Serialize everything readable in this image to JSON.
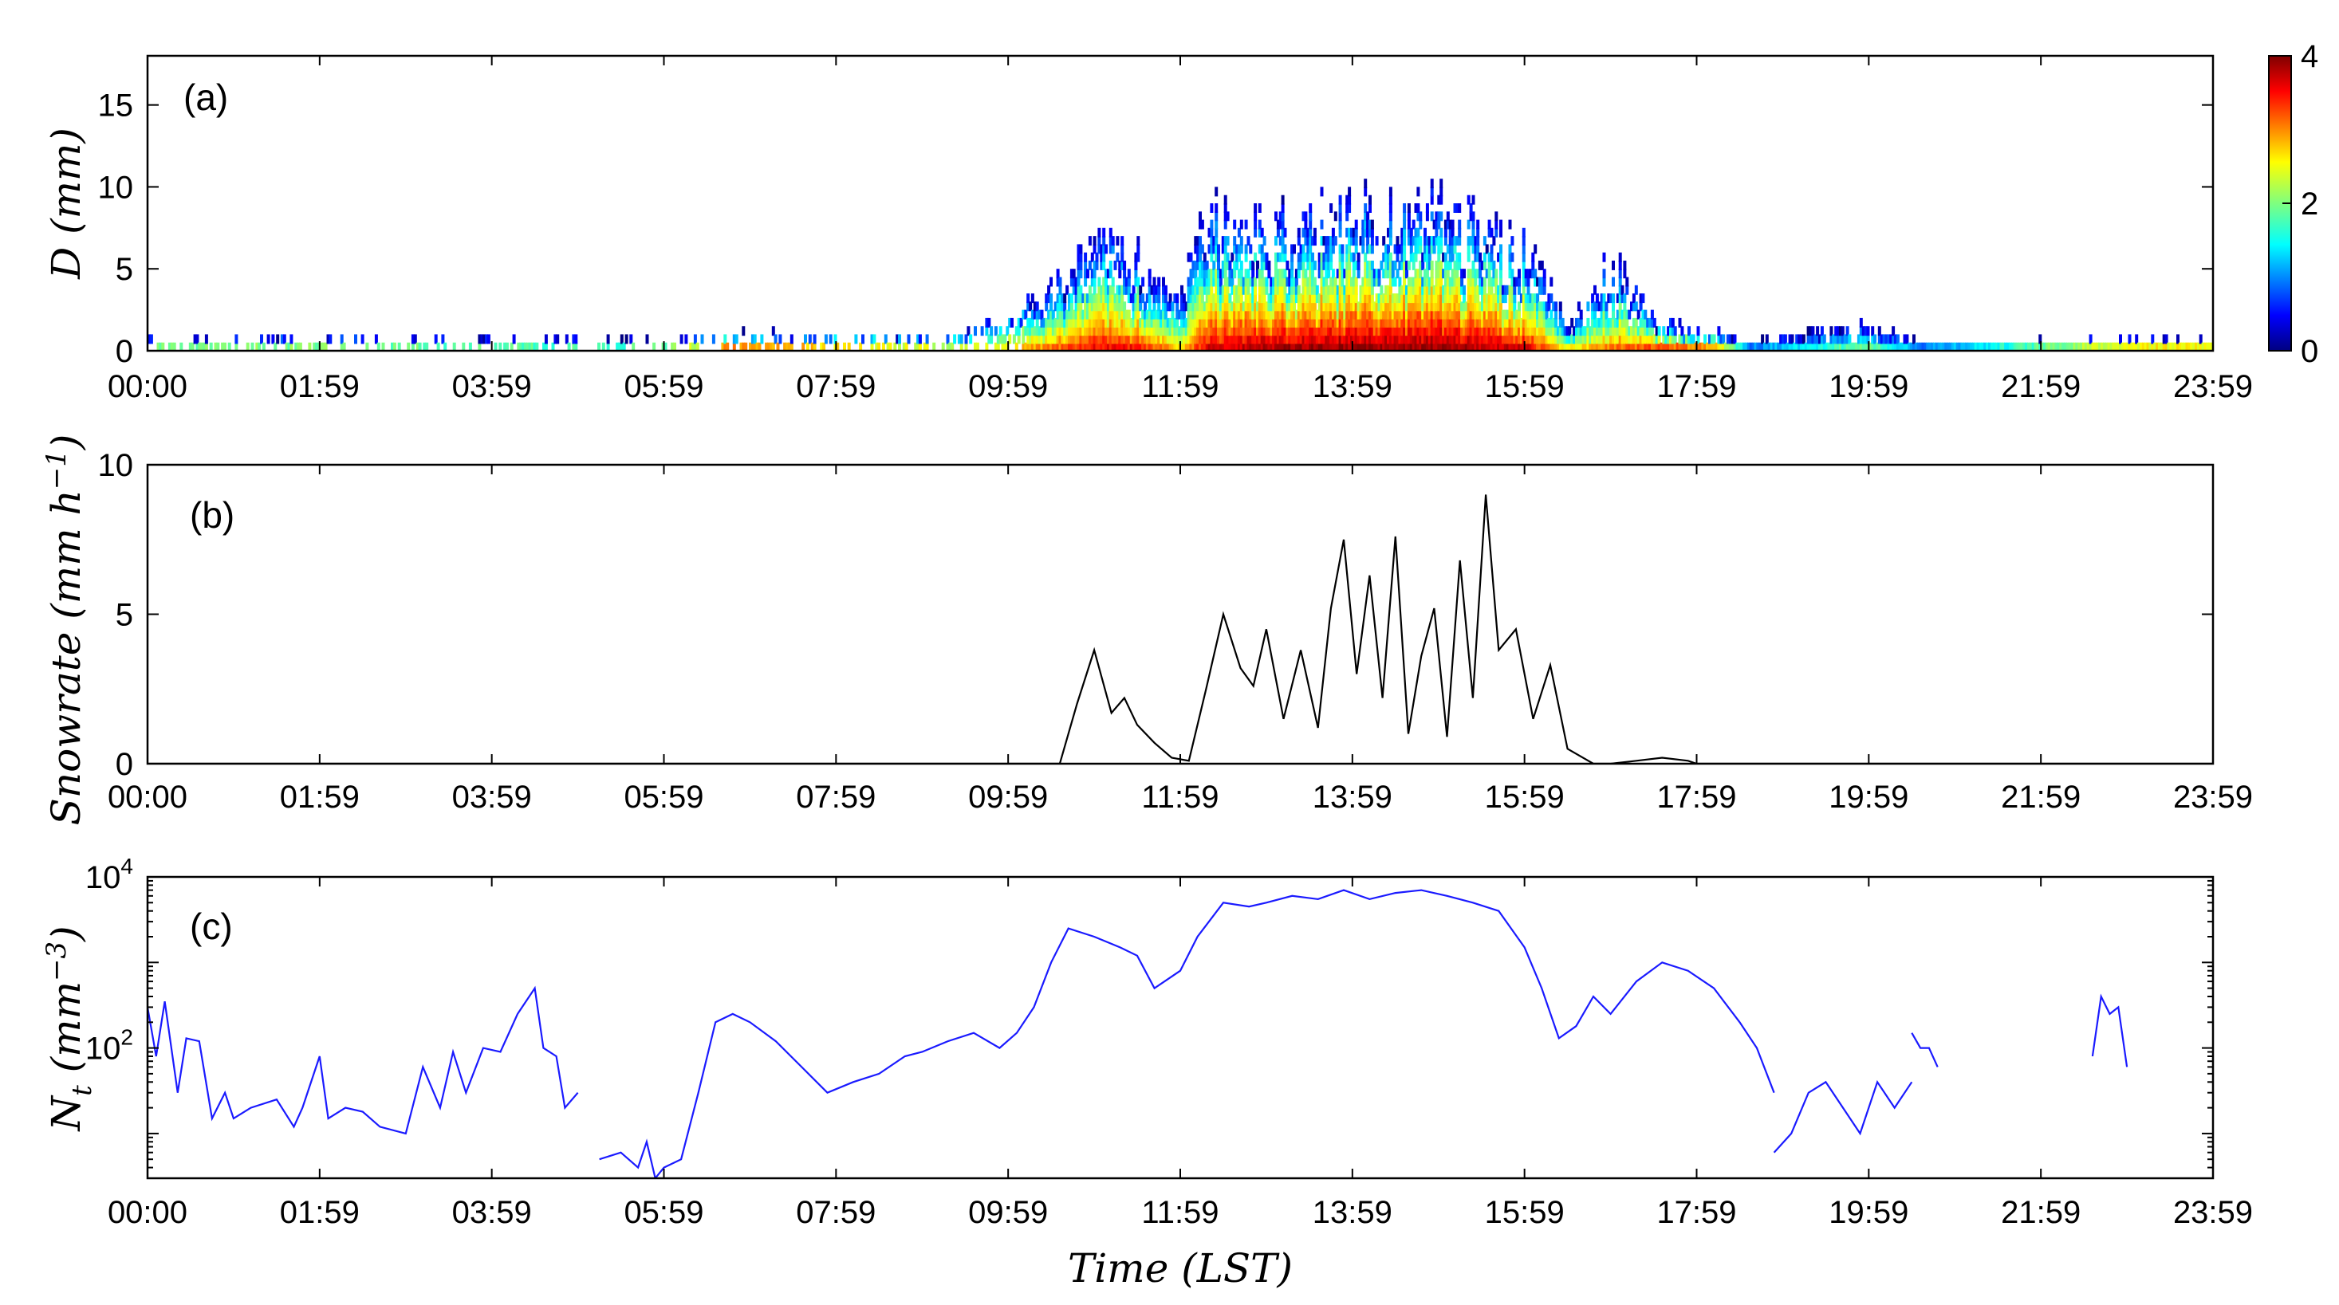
{
  "chart_data": [
    {
      "type": "heatmap",
      "panel_label": "(a)",
      "ylabel_var": "D",
      "ylabel_unit": "(mm)",
      "xlim_hours": [
        0,
        24
      ],
      "ylim": [
        0,
        18
      ],
      "x_ticks": [
        "00:00",
        "01:59",
        "03:59",
        "05:59",
        "07:59",
        "09:59",
        "11:59",
        "13:59",
        "15:59",
        "17:59",
        "19:59",
        "21:59",
        "23:59"
      ],
      "y_ticks": [
        "0",
        "5",
        "10",
        "15"
      ],
      "colorbar": {
        "ticks": [
          "0",
          "2",
          "4"
        ],
        "range": [
          0,
          4
        ],
        "colormap": "jet"
      },
      "intensity_profile": [
        {
          "t": 0,
          "top": 0.6,
          "v": 1.9
        },
        {
          "t": 1.5,
          "top": 0.6,
          "v": 2.0
        },
        {
          "t": 3.0,
          "top": 0.6,
          "v": 1.9
        },
        {
          "t": 4.5,
          "top": 0.5,
          "v": 1.8
        },
        {
          "t": 6.0,
          "top": 0.5,
          "v": 1.8
        },
        {
          "t": 6.8,
          "top": 0.8,
          "v": 3.0
        },
        {
          "t": 8.0,
          "top": 0.8,
          "v": 2.6
        },
        {
          "t": 9.5,
          "top": 1.0,
          "v": 2.2
        },
        {
          "t": 10.5,
          "top": 4.0,
          "v": 3.0
        },
        {
          "t": 11.0,
          "top": 6.5,
          "v": 3.5
        },
        {
          "t": 11.5,
          "top": 5.5,
          "v": 3.4
        },
        {
          "t": 12.0,
          "top": 3.0,
          "v": 2.6
        },
        {
          "t": 12.3,
          "top": 8.0,
          "v": 3.6
        },
        {
          "t": 13.0,
          "top": 7.0,
          "v": 3.8
        },
        {
          "t": 14.0,
          "top": 8.0,
          "v": 3.9
        },
        {
          "t": 15.0,
          "top": 8.0,
          "v": 3.9
        },
        {
          "t": 16.0,
          "top": 6.0,
          "v": 3.6
        },
        {
          "t": 16.5,
          "top": 1.2,
          "v": 2.4
        },
        {
          "t": 17.0,
          "top": 5.5,
          "v": 3.0
        },
        {
          "t": 17.5,
          "top": 1.5,
          "v": 3.2
        },
        {
          "t": 18.2,
          "top": 1.0,
          "v": 2.8
        },
        {
          "t": 18.6,
          "top": 0.3,
          "v": 1.0
        },
        {
          "t": 20.0,
          "top": 1.5,
          "v": 2.0
        },
        {
          "t": 20.6,
          "top": 0.3,
          "v": 1.0
        },
        {
          "t": 23.0,
          "top": 0.5,
          "v": 2.5
        }
      ]
    },
    {
      "type": "line",
      "panel_label": "(b)",
      "ylabel_var": "Snowrate",
      "ylabel_unit": "(mm h",
      "ylabel_unit_sup": "−1",
      "ylabel_unit_close": ")",
      "xlim_hours": [
        0,
        24
      ],
      "ylim": [
        0,
        10
      ],
      "x_ticks": [
        "00:00",
        "01:59",
        "03:59",
        "05:59",
        "07:59",
        "09:59",
        "11:59",
        "13:59",
        "15:59",
        "17:59",
        "19:59",
        "21:59",
        "23:59"
      ],
      "y_ticks": [
        "0",
        "5",
        "10"
      ],
      "series": [
        {
          "color": "#000000",
          "x": [
            0,
            10.6,
            10.8,
            11.0,
            11.2,
            11.35,
            11.5,
            11.7,
            11.9,
            12.1,
            12.3,
            12.5,
            12.7,
            12.85,
            13.0,
            13.2,
            13.4,
            13.6,
            13.75,
            13.9,
            14.05,
            14.2,
            14.35,
            14.5,
            14.65,
            14.8,
            14.95,
            15.1,
            15.25,
            15.4,
            15.55,
            15.7,
            15.9,
            16.1,
            16.3,
            16.5,
            16.8,
            17.0,
            17.3,
            17.6,
            17.9,
            18.0,
            24
          ],
          "y": [
            0,
            0,
            2.0,
            3.8,
            1.7,
            2.2,
            1.3,
            0.7,
            0.2,
            0.1,
            2.5,
            5.0,
            3.2,
            2.6,
            4.5,
            1.5,
            3.8,
            1.2,
            5.2,
            7.5,
            3.0,
            6.3,
            2.2,
            7.6,
            1.0,
            3.6,
            5.2,
            0.9,
            6.8,
            2.2,
            9.0,
            3.8,
            4.5,
            1.5,
            3.3,
            0.5,
            0,
            0,
            0.1,
            0.2,
            0.1,
            0,
            0
          ]
        }
      ]
    },
    {
      "type": "line",
      "panel_label": "(c)",
      "ylabel_var": "N",
      "ylabel_sub": "t",
      "ylabel_unit": "(mm",
      "ylabel_unit_sup": "−3",
      "ylabel_unit_close": ")",
      "y_scale": "log",
      "xlim_hours": [
        0,
        24
      ],
      "ylim": [
        3,
        10000
      ],
      "x_ticks": [
        "00:00",
        "01:59",
        "03:59",
        "05:59",
        "07:59",
        "09:59",
        "11:59",
        "13:59",
        "15:59",
        "17:59",
        "19:59",
        "21:59",
        "23:59"
      ],
      "y_ticks": [
        {
          "base": "10",
          "exp": "2",
          "value": 100
        },
        {
          "base": "10",
          "exp": "4",
          "value": 10000
        }
      ],
      "xlabel_var": "Time",
      "xlabel_unit": "(LST)",
      "series": [
        {
          "color": "#1a1aff",
          "segments": [
            {
              "x": [
                0,
                0.1,
                0.2,
                0.35,
                0.45,
                0.6,
                0.75,
                0.9,
                1.0,
                1.2,
                1.5,
                1.7,
                1.8,
                2.0,
                2.1,
                2.3,
                2.5,
                2.7,
                3.0,
                3.2,
                3.4,
                3.55,
                3.7,
                3.9,
                4.1,
                4.3,
                4.5,
                4.6,
                4.75,
                4.85,
                5.0
              ],
              "y": [
                300,
                80,
                350,
                30,
                130,
                120,
                15,
                30,
                15,
                20,
                25,
                12,
                20,
                80,
                15,
                20,
                18,
                12,
                10,
                60,
                20,
                90,
                30,
                100,
                90,
                250,
                500,
                100,
                80,
                20,
                30
              ]
            },
            {
              "x": [
                5.25,
                5.5,
                5.7,
                5.8,
                5.9,
                6.0,
                6.2,
                6.4,
                6.6,
                6.8,
                7.0,
                7.3,
                7.6,
                7.9,
                8.2,
                8.5,
                8.8,
                9.0,
                9.3,
                9.6,
                9.9,
                10.1,
                10.3,
                10.5,
                10.7,
                11.0,
                11.3,
                11.5,
                11.7,
                12.0,
                12.2,
                12.5,
                12.8,
                13.0,
                13.3,
                13.6,
                13.9,
                14.2,
                14.5,
                14.8,
                15.1,
                15.4,
                15.7,
                16.0,
                16.2,
                16.4,
                16.6,
                16.8,
                17.0,
                17.3,
                17.6,
                17.9,
                18.2,
                18.5,
                18.7,
                18.9
              ],
              "y": [
                5,
                6,
                4,
                8,
                3,
                4,
                5,
                30,
                200,
                250,
                200,
                120,
                60,
                30,
                40,
                50,
                80,
                90,
                120,
                150,
                100,
                150,
                300,
                1000,
                2500,
                2000,
                1500,
                1200,
                500,
                800,
                2000,
                5000,
                4500,
                5000,
                6000,
                5500,
                7000,
                5500,
                6500,
                7000,
                6000,
                5000,
                4000,
                1500,
                500,
                130,
                180,
                400,
                250,
                600,
                1000,
                800,
                500,
                200,
                100,
                30
              ]
            },
            {
              "x": [
                18.9,
                19.1,
                19.3,
                19.5,
                19.7,
                19.9,
                20.1,
                20.3,
                20.5
              ],
              "y": [
                6,
                10,
                30,
                40,
                20,
                10,
                40,
                20,
                40
              ]
            },
            {
              "x": [
                20.5,
                20.6,
                20.7,
                20.8
              ],
              "y": [
                150,
                100,
                100,
                60
              ]
            },
            {
              "x": [
                22.6,
                22.7,
                22.8,
                22.9,
                23.0
              ],
              "y": [
                80,
                400,
                250,
                300,
                60
              ]
            }
          ]
        }
      ]
    }
  ]
}
